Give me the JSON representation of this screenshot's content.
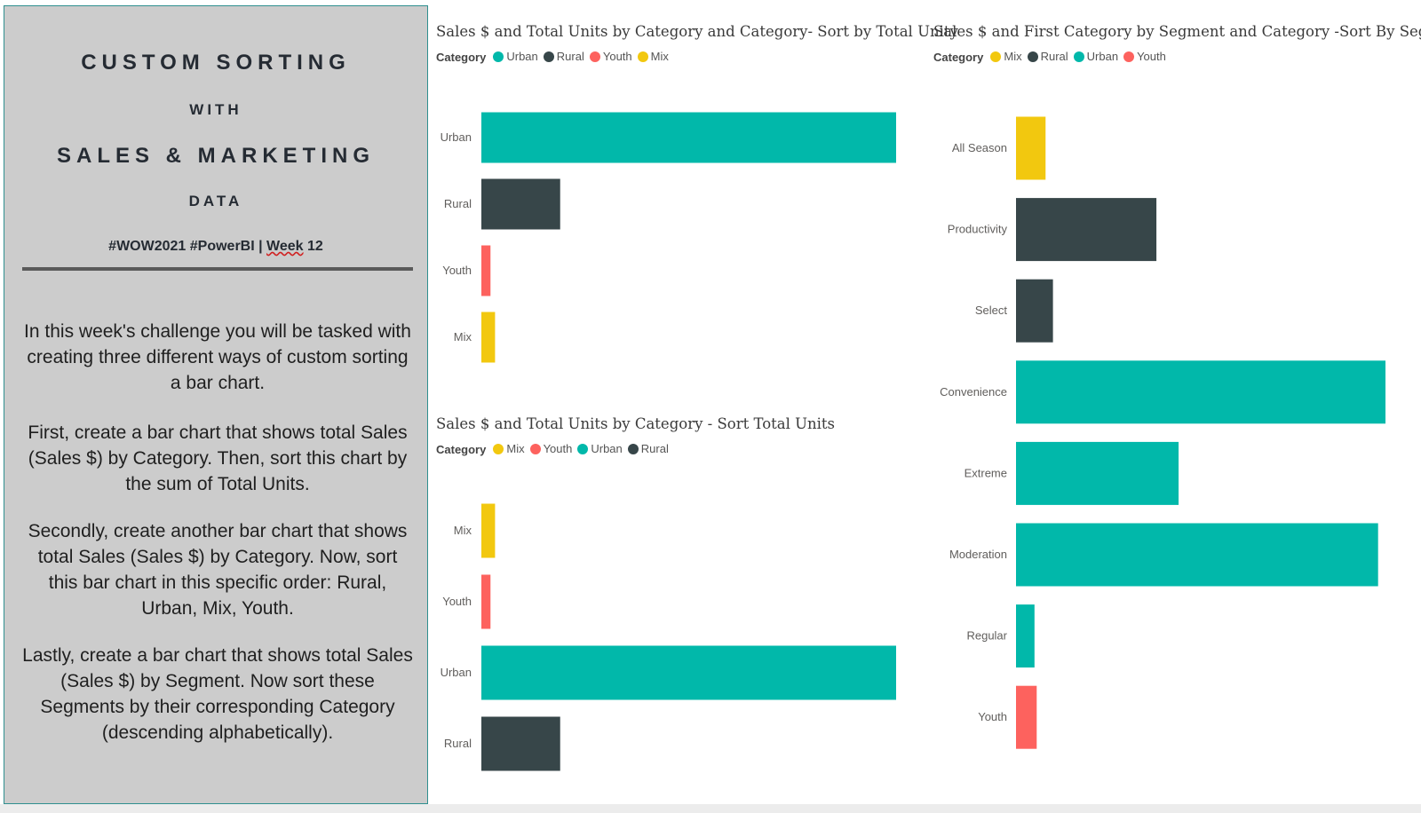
{
  "panel": {
    "title_line_1": "CUSTOM SORTING",
    "title_line_2": "WITH",
    "title_line_3": "SALES & MARKETING",
    "title_line_4": "DATA",
    "hashtags": "#WOW2021 #PowerBI | ",
    "week_word": "Week",
    "week_number": " 12",
    "paragraphs": [
      "In this week's challenge you will be tasked with creating three different ways of custom sorting a bar chart.",
      "First, create a bar chart that shows total Sales (Sales $) by Category. Then, sort this chart by the sum of Total Units.",
      "Secondly, create another bar chart that shows total Sales (Sales $) by Category. Now, sort this bar chart in this specific order: Rural, Urban, Mix, Youth.",
      "Lastly, create a bar chart that shows total Sales (Sales $) by Segment. Now sort these Segments by their corresponding Category (descending alphabetically)."
    ]
  },
  "colors": {
    "Urban": "#01b8aa",
    "Rural": "#374649",
    "Youth": "#fd625e",
    "Mix": "#f2c80f"
  },
  "chart_data": [
    {
      "type": "bar",
      "orientation": "horizontal",
      "title": "Sales $ and Total Units by Category and Category- Sort by Total Unity",
      "legend_title": "Category",
      "legend": [
        "Urban",
        "Rural",
        "Youth",
        "Mix"
      ],
      "categories": [
        "Urban",
        "Rural",
        "Youth",
        "Mix"
      ],
      "values": [
        100,
        19,
        2.2,
        3.3
      ],
      "bar_colors": [
        "Urban",
        "Rural",
        "Youth",
        "Mix"
      ],
      "xlim": [
        0,
        100
      ]
    },
    {
      "type": "bar",
      "orientation": "horizontal",
      "title": "Sales $ and Total Units by Category - Sort Total Units",
      "legend_title": "Category",
      "legend": [
        "Mix",
        "Youth",
        "Urban",
        "Rural"
      ],
      "categories": [
        "Mix",
        "Youth",
        "Urban",
        "Rural"
      ],
      "values": [
        3.3,
        2.2,
        100,
        19
      ],
      "bar_colors": [
        "Mix",
        "Youth",
        "Urban",
        "Rural"
      ],
      "xlim": [
        0,
        100
      ]
    },
    {
      "type": "bar",
      "orientation": "horizontal",
      "title": "Sales $ and First Category by Segment and Category -Sort By Segment",
      "legend_title": "Category",
      "legend": [
        "Mix",
        "Rural",
        "Urban",
        "Youth"
      ],
      "categories": [
        "All Season",
        "Productivity",
        "Select",
        "Convenience",
        "Extreme",
        "Moderation",
        "Regular",
        "Youth"
      ],
      "values": [
        8,
        38,
        10,
        100,
        44,
        98,
        5,
        5.6
      ],
      "bar_colors": [
        "Mix",
        "Rural",
        "Rural",
        "Urban",
        "Urban",
        "Urban",
        "Urban",
        "Youth"
      ],
      "xlim": [
        0,
        100
      ]
    }
  ]
}
